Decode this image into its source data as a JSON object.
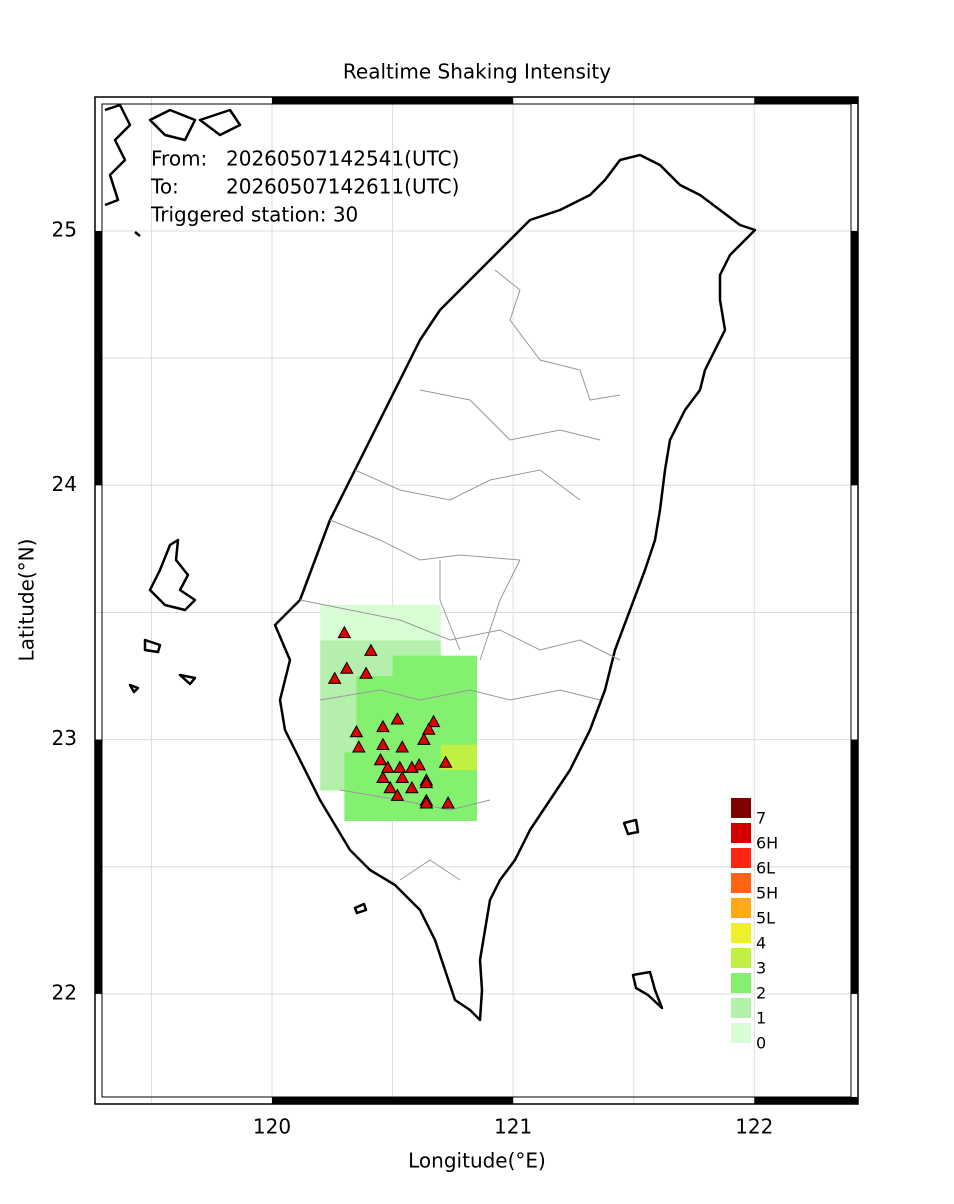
{
  "chart_data": {
    "type": "station_map",
    "title": "Realtime Shaking Intensity",
    "info": [
      {
        "label": "From:",
        "value": "20260507142541(UTC)"
      },
      {
        "label": "To:",
        "value": "20260507142611(UTC)"
      },
      {
        "label": "Triggered station: 30",
        "value": null
      }
    ],
    "x_label": "Longitude(°E)",
    "y_label": "Latitude(°N)",
    "xlim": [
      119.266,
      122.43
    ],
    "ylim": [
      21.567,
      25.527
    ],
    "xticks": [
      120,
      121,
      122
    ],
    "yticks": [
      22,
      23,
      24,
      25
    ],
    "minor_xticks": [
      119.5,
      120.5,
      121.5
    ],
    "minor_yticks": [
      22.5,
      23.5,
      24.5
    ],
    "grid": true,
    "legend": {
      "levels": [
        "7",
        "6H",
        "6L",
        "5H",
        "5L",
        "4",
        "3",
        "2",
        "1",
        "0"
      ],
      "colors": [
        "#800000",
        "#d40000",
        "#ff2414",
        "#ff6414",
        "#ffaa14",
        "#f0f028",
        "#c0f044",
        "#84f070",
        "#b4f0ac",
        "#d8fcd4"
      ]
    },
    "intensity_cells": [
      {
        "level": "0",
        "lon": [
          120.2,
          120.7
        ],
        "lat": [
          23.39,
          23.53
        ]
      },
      {
        "level": "1",
        "lon": [
          120.2,
          120.7
        ],
        "lat": [
          22.8,
          23.39
        ]
      },
      {
        "level": "2",
        "lon": [
          120.5,
          120.85
        ],
        "lat": [
          22.68,
          23.33
        ]
      },
      {
        "level": "2",
        "lon": [
          120.35,
          120.5
        ],
        "lat": [
          22.95,
          23.25
        ]
      },
      {
        "level": "2",
        "lon": [
          120.3,
          120.5
        ],
        "lat": [
          22.68,
          22.95
        ]
      },
      {
        "level": "3",
        "lon": [
          120.7,
          120.85
        ],
        "lat": [
          22.88,
          22.98
        ]
      }
    ],
    "stations": {
      "lon": [
        120.3,
        120.41,
        120.31,
        120.39,
        120.26,
        120.52,
        120.46,
        120.67,
        120.35,
        120.65,
        120.63,
        120.46,
        120.54,
        120.36,
        120.72,
        120.45,
        120.48,
        120.61,
        120.53,
        120.58,
        120.46,
        120.54,
        120.64,
        120.49,
        120.58,
        120.64,
        120.52,
        120.64,
        120.64,
        120.73
      ],
      "lat": [
        23.42,
        23.35,
        23.28,
        23.26,
        23.24,
        23.08,
        23.05,
        23.07,
        23.03,
        23.04,
        23.0,
        22.98,
        22.97,
        22.97,
        22.91,
        22.92,
        22.89,
        22.9,
        22.89,
        22.89,
        22.85,
        22.85,
        22.84,
        22.81,
        22.81,
        22.83,
        22.78,
        22.76,
        22.75,
        22.75
      ],
      "color": "#e00000"
    }
  }
}
